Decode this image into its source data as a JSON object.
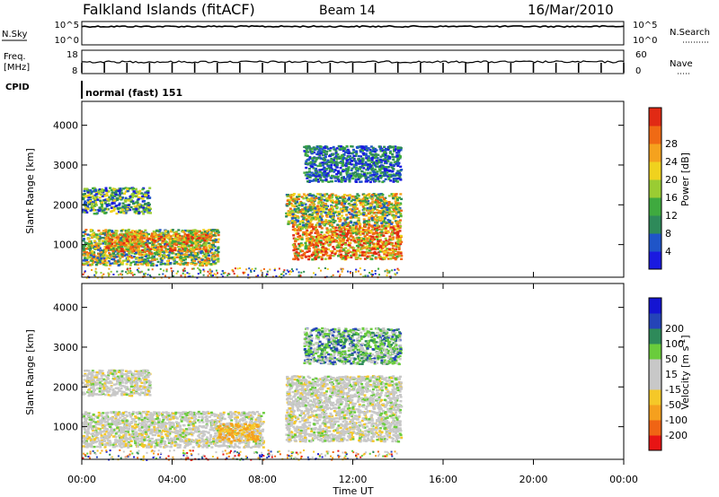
{
  "header": {
    "station": "Falkland Islands (fitACF)",
    "beam": "Beam 14",
    "date": "16/Mar/2010"
  },
  "status_panels": {
    "nsky": {
      "label": "N.Sky",
      "ticks": [
        "10^5",
        "10^0"
      ]
    },
    "nsearch": {
      "label": "N.Search",
      "ticks": [
        "10^5",
        "10^0"
      ]
    },
    "freq": {
      "label_top": "Freq.",
      "label_unit": "[MHz]",
      "ticks": [
        "18",
        "8"
      ]
    },
    "nave": {
      "label": "Nave",
      "ticks": [
        "60",
        "0"
      ]
    },
    "cpid": {
      "label": "CPID",
      "value": "normal (fast) 151"
    }
  },
  "power_colorbar": {
    "title": "Power [dB]",
    "colors": [
      "#1a1ae0",
      "#1f55c8",
      "#2e8a5a",
      "#3faa3f",
      "#9acc33",
      "#f0d21e",
      "#f5a21e",
      "#f06a14",
      "#e12a14"
    ],
    "ticks": [
      "4",
      "8",
      "12",
      "16",
      "20",
      "24",
      "28"
    ]
  },
  "velocity_colorbar": {
    "title": "Velocity [m s",
    "title_sup": "-1",
    "title_end": "]",
    "colors": [
      "#e81414",
      "#f06414",
      "#f5a01e",
      "#f5c828",
      "#c8c8c8",
      "#c8c8c8",
      "#6acc3c",
      "#2e8a5a",
      "#2444b8",
      "#1414d2"
    ],
    "ticks": [
      "-200",
      "-100",
      "-50",
      "-15",
      "15",
      "50",
      "100",
      "200"
    ]
  },
  "chart_data": [
    {
      "type": "heatmap",
      "title": "Power",
      "ylabel": "Slant Range [km]",
      "xlabel": "",
      "yticks": [
        "1000",
        "2000",
        "3000",
        "4000"
      ],
      "ylim": [
        180,
        4600
      ],
      "xlim": [
        0,
        24
      ],
      "regions": [
        {
          "x": [
            0.0,
            3.0
          ],
          "y": [
            1800,
            2450
          ],
          "level": "mid"
        },
        {
          "x": [
            0.0,
            6.0
          ],
          "y": [
            500,
            1400
          ],
          "level": "high"
        },
        {
          "x": [
            1.0,
            5.5
          ],
          "y": [
            850,
            1300
          ],
          "level": "peak"
        },
        {
          "x": [
            9.3,
            14.1
          ],
          "y": [
            650,
            1500
          ],
          "level": "peak"
        },
        {
          "x": [
            9.0,
            14.1
          ],
          "y": [
            1500,
            2300
          ],
          "level": "high"
        },
        {
          "x": [
            9.8,
            14.1
          ],
          "y": [
            2600,
            3500
          ],
          "level": "low"
        }
      ]
    },
    {
      "type": "heatmap",
      "title": "Velocity",
      "ylabel": "Slant Range [km]",
      "xlabel": "Time UT",
      "xticks": [
        "00:00",
        "04:00",
        "08:00",
        "12:00",
        "16:00",
        "20:00",
        "00:00"
      ],
      "yticks": [
        "1000",
        "2000",
        "3000",
        "4000"
      ],
      "ylim": [
        180,
        4600
      ],
      "xlim": [
        0,
        24
      ],
      "regions": [
        {
          "x": [
            0.0,
            3.0
          ],
          "y": [
            1800,
            2450
          ],
          "level": "ground"
        },
        {
          "x": [
            0.0,
            8.0
          ],
          "y": [
            500,
            1400
          ],
          "level": "ground"
        },
        {
          "x": [
            6.0,
            7.8
          ],
          "y": [
            650,
            1100
          ],
          "level": "negative"
        },
        {
          "x": [
            9.0,
            14.1
          ],
          "y": [
            650,
            2300
          ],
          "level": "ground"
        },
        {
          "x": [
            9.8,
            14.1
          ],
          "y": [
            2600,
            3500
          ],
          "level": "positive"
        }
      ]
    }
  ]
}
